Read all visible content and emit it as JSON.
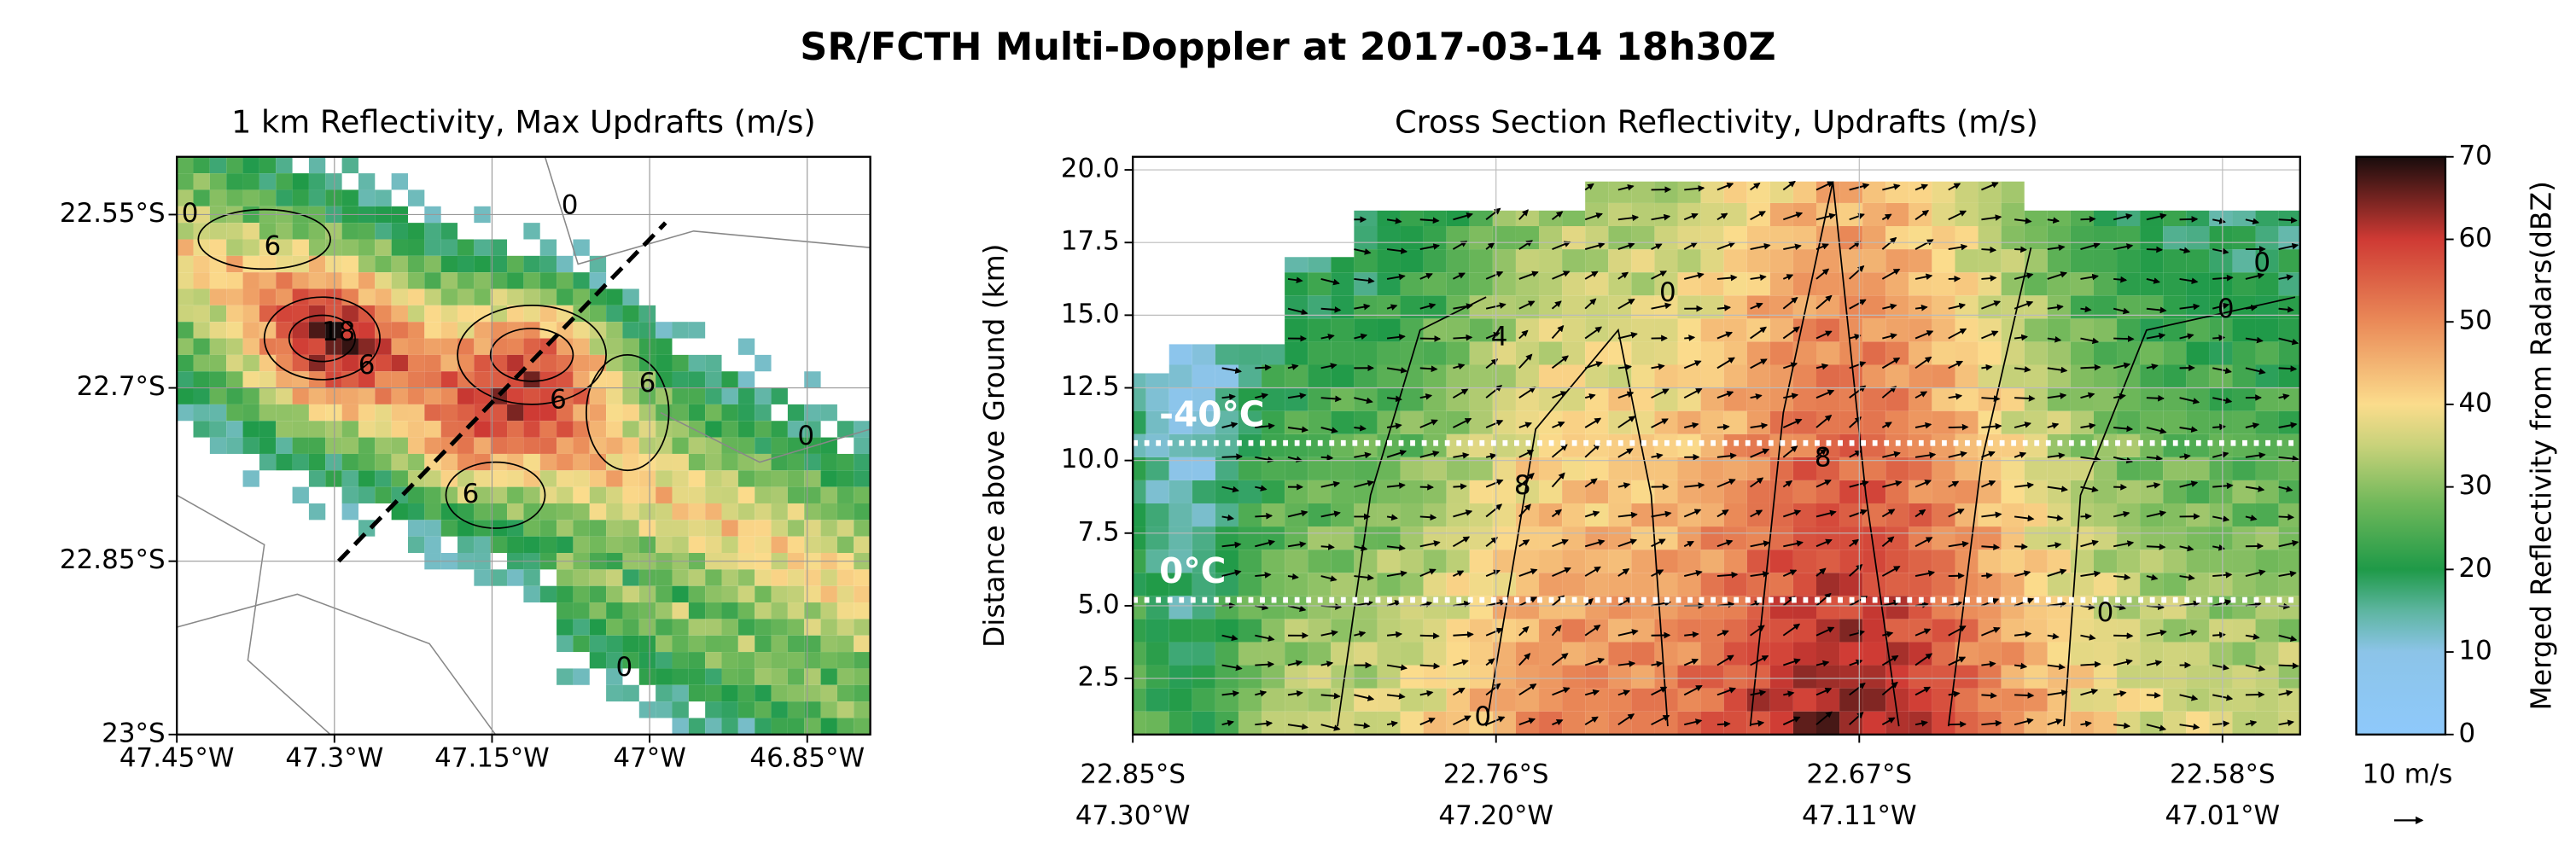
{
  "title": "SR/FCTH Multi-Doppler at 2017-03-14 18h30Z",
  "chart_data": [
    {
      "type": "map",
      "title": "1 km Reflectivity, Max Updrafts (m/s)",
      "xlim": [
        -47.45,
        -46.79
      ],
      "ylim": [
        -23,
        -22.5
      ],
      "xticks": [
        {
          "value": -47.45,
          "label": "47.45°W"
        },
        {
          "value": -47.3,
          "label": "47.3°W"
        },
        {
          "value": -47.15,
          "label": "47.15°W"
        },
        {
          "value": -47,
          "label": "47°W"
        },
        {
          "value": -46.85,
          "label": "46.85°W"
        }
      ],
      "yticks": [
        {
          "value": -22.55,
          "label": "22.55°S"
        },
        {
          "value": -22.7,
          "label": "22.7°S"
        },
        {
          "value": -22.85,
          "label": "22.85°S"
        },
        {
          "value": -23,
          "label": "23°S"
        }
      ],
      "grid": true,
      "contour_labels": [
        "0",
        "6",
        "18",
        "6",
        "0",
        "6",
        "6",
        "0",
        "0",
        "6"
      ]
    },
    {
      "type": "cross_section",
      "title": "Cross Section Reflectivity, Updrafts (m/s)",
      "ylabel": "Distance above Ground (km)",
      "xticklabels": [
        [
          "22.85°S",
          "47.30°W"
        ],
        [
          "22.76°S",
          "47.20°W"
        ],
        [
          "22.67°S",
          "47.11°W"
        ],
        [
          "22.58°S",
          "47.01°W"
        ]
      ],
      "ylim": [
        0.57,
        20.45
      ],
      "yticks": [
        2.5,
        {
          "value": 5,
          "label": "5.0"
        },
        7.5,
        {
          "value": 10,
          "label": "10.0"
        },
        12.5,
        {
          "value": 15,
          "label": "15.0"
        },
        17.5,
        {
          "value": 20,
          "label": "20.0"
        }
      ],
      "grid": true,
      "isotherms": [
        {
          "label": "-40°C",
          "value": 10.6
        },
        {
          "label": "0°C",
          "value": 5.2
        }
      ],
      "contour_labels": [
        "0",
        "4",
        "8",
        "0",
        "8",
        "0",
        "0",
        "0"
      ],
      "quiver_key": "10 m/s"
    },
    {
      "type": "colorbar",
      "label": "Merged Reflectivity from Radars(dBZ)",
      "ylim": [
        0,
        70
      ],
      "yticks": [
        0,
        10,
        20,
        30,
        40,
        50,
        60,
        70
      ],
      "colormap": [
        [
          0,
          "#8ec9fb"
        ],
        [
          10,
          "#8cc4e8"
        ],
        [
          15,
          "#5db5a0"
        ],
        [
          20,
          "#1f9a48"
        ],
        [
          28,
          "#70b85a"
        ],
        [
          35,
          "#c8d27a"
        ],
        [
          40,
          "#fbdc8c"
        ],
        [
          50,
          "#ea8a58"
        ],
        [
          60,
          "#cf3a34"
        ],
        [
          70,
          "#180c0c"
        ]
      ]
    }
  ]
}
